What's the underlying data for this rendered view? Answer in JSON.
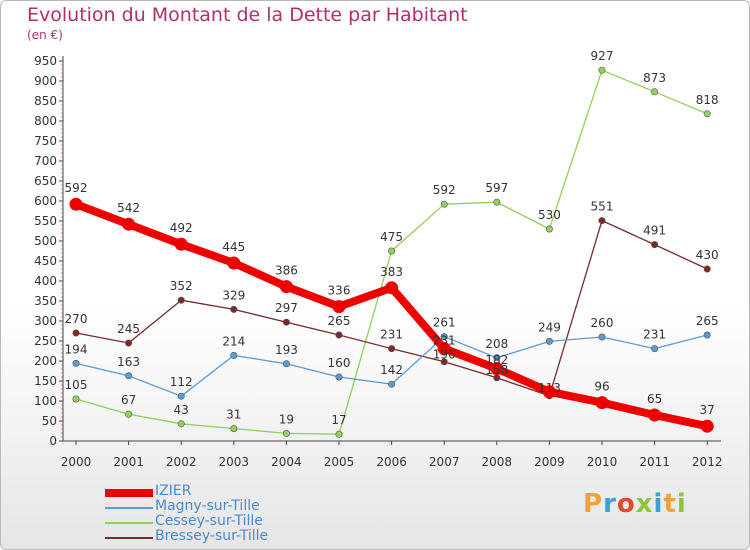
{
  "title": "Evolution du Montant de la Dette par Habitant",
  "subtitle": "(en €)",
  "logo_text": "Proxiti",
  "logo_colors": [
    "#f0a23a",
    "#3aa0d8",
    "#e24a2c",
    "#8cc63f",
    "#3aa0d8",
    "#f0a23a",
    "#8cc63f"
  ],
  "chart_data": {
    "type": "line",
    "x": [
      "2000",
      "2001",
      "2002",
      "2003",
      "2004",
      "2005",
      "2006",
      "2007",
      "2008",
      "2009",
      "2010",
      "2011",
      "2012"
    ],
    "ylim": [
      0,
      950
    ],
    "yticks": [
      0,
      50,
      100,
      150,
      200,
      250,
      300,
      350,
      400,
      450,
      500,
      550,
      600,
      650,
      700,
      750,
      800,
      850,
      900,
      950
    ],
    "grid": false,
    "legend_position": "bottom-left",
    "series": [
      {
        "name": "IZIER",
        "color": "#ee0000",
        "values": [
          592,
          542,
          492,
          445,
          386,
          336,
          383,
          231,
          181,
          123,
          96,
          65,
          37
        ],
        "labels": [
          "592",
          "542",
          "492",
          "445",
          "386",
          "336",
          "383",
          "",
          "",
          "",
          "96",
          "65",
          "37"
        ]
      },
      {
        "name": "Magny-sur-Tille",
        "color": "#5b9bd5",
        "values": [
          194,
          163,
          112,
          214,
          193,
          160,
          142,
          261,
          208,
          249,
          260,
          231,
          265
        ],
        "labels": [
          "194",
          "163",
          "112",
          "214",
          "193",
          "160",
          "142",
          "261",
          "208",
          "249",
          "260",
          "231",
          "265"
        ]
      },
      {
        "name": "Cessey-sur-Tille",
        "color": "#8fd15a",
        "values": [
          105,
          67,
          43,
          31,
          19,
          17,
          475,
          592,
          597,
          530,
          927,
          873,
          818
        ],
        "labels": [
          "105",
          "67",
          "43",
          "31",
          "19",
          "17",
          "475",
          "592",
          "597",
          "530",
          "927",
          "873",
          "818"
        ]
      },
      {
        "name": "Bressey-sur-Tille",
        "color": "#7a2a2a",
        "values": [
          270,
          245,
          352,
          329,
          297,
          265,
          231,
          198,
          158,
          113,
          551,
          491,
          430
        ],
        "labels": [
          "270",
          "245",
          "352",
          "329",
          "297",
          "265",
          "231",
          "",
          "",
          "",
          "551",
          "491",
          "430"
        ]
      }
    ],
    "overlap_labels": [
      "231",
      "196",
      "182",
      "158",
      "113"
    ]
  }
}
